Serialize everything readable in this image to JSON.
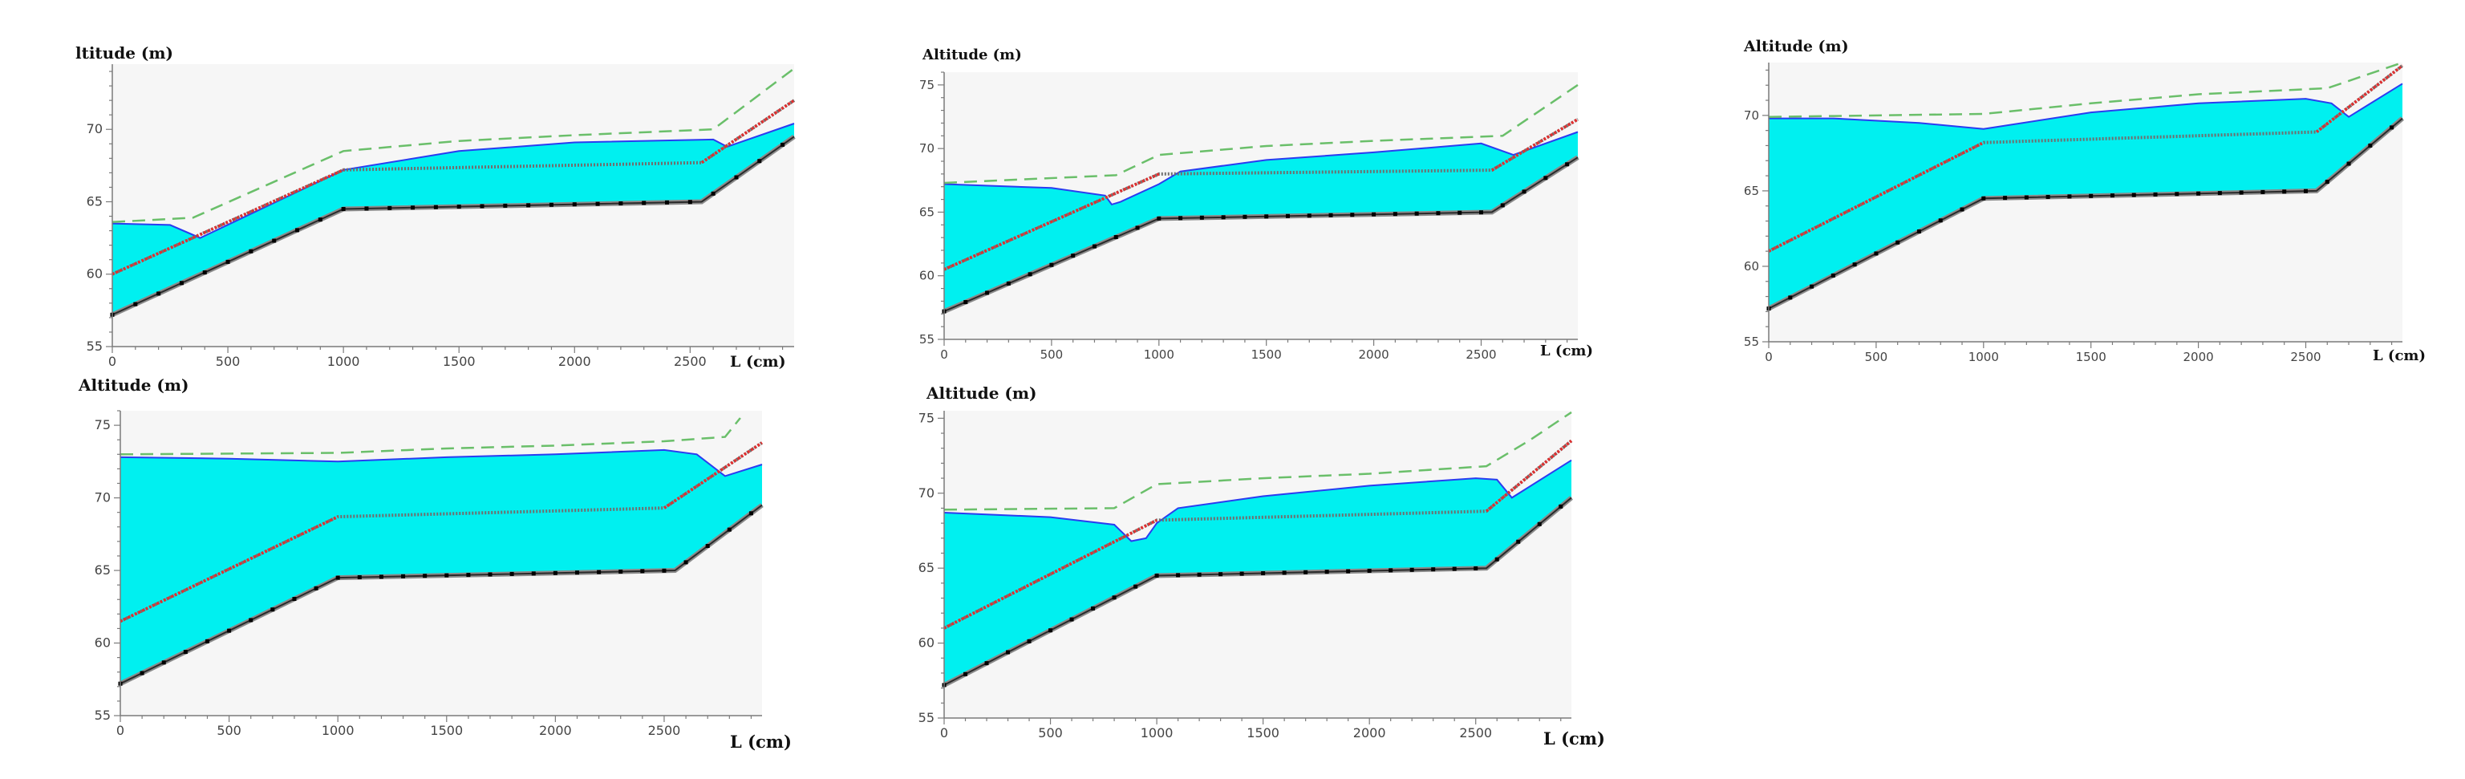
{
  "colors": {
    "water": "#00f0f0",
    "water_edge": "#2a3cf0",
    "dashed_line": "#6abf6a",
    "red_line": "#e03030",
    "chain_line": "#6f6f6f",
    "plot_bg": "#f6f6f6",
    "axis": "#7a7a7a"
  },
  "chart_data": [
    {
      "type": "area",
      "ylabel": "ltitude (m)",
      "xlabel": "L (cm)",
      "xlim": [
        0,
        2950
      ],
      "ylim": [
        55,
        74.5
      ],
      "xticks": [
        0,
        500,
        1000,
        1500,
        2000,
        2500
      ],
      "yticks": [
        55,
        60,
        65,
        70
      ],
      "bottom": [
        [
          0,
          57.2
        ],
        [
          1000,
          64.5
        ],
        [
          2550,
          65
        ],
        [
          2950,
          69.5
        ]
      ],
      "chain": [
        [
          0,
          60
        ],
        [
          1000,
          67.2
        ],
        [
          2550,
          67.7
        ],
        [
          2950,
          72
        ]
      ],
      "water": [
        [
          0,
          63.5
        ],
        [
          250,
          63.4
        ],
        [
          380,
          62.5
        ],
        [
          1000,
          67.2
        ],
        [
          1500,
          68.5
        ],
        [
          2000,
          69.1
        ],
        [
          2600,
          69.3
        ],
        [
          2660,
          68.8
        ],
        [
          2950,
          70.4
        ]
      ],
      "dashed": [
        [
          0,
          63.6
        ],
        [
          350,
          63.9
        ],
        [
          1000,
          68.5
        ],
        [
          1500,
          69.2
        ],
        [
          2000,
          69.6
        ],
        [
          2600,
          70
        ],
        [
          2950,
          74.2
        ]
      ]
    },
    {
      "type": "area",
      "ylabel": "Altitude (m)",
      "xlabel": "L (cm)",
      "xlim": [
        0,
        2950
      ],
      "ylim": [
        55,
        76
      ],
      "xticks": [
        0,
        500,
        1000,
        1500,
        2000,
        2500
      ],
      "yticks": [
        55,
        60,
        65,
        70,
        75
      ],
      "bottom": [
        [
          0,
          57.2
        ],
        [
          1000,
          64.5
        ],
        [
          2550,
          65
        ],
        [
          2950,
          69.3
        ]
      ],
      "chain": [
        [
          0,
          60.5
        ],
        [
          1000,
          68
        ],
        [
          2550,
          68.3
        ],
        [
          2950,
          72.3
        ]
      ],
      "water": [
        [
          0,
          67.2
        ],
        [
          500,
          66.9
        ],
        [
          750,
          66.3
        ],
        [
          780,
          65.6
        ],
        [
          820,
          65.8
        ],
        [
          1000,
          67.2
        ],
        [
          1100,
          68.2
        ],
        [
          1500,
          69.1
        ],
        [
          2000,
          69.7
        ],
        [
          2500,
          70.4
        ],
        [
          2650,
          69.5
        ],
        [
          2950,
          71.3
        ]
      ],
      "dashed": [
        [
          0,
          67.3
        ],
        [
          800,
          67.9
        ],
        [
          1000,
          69.5
        ],
        [
          1500,
          70.2
        ],
        [
          2000,
          70.6
        ],
        [
          2600,
          71
        ],
        [
          2950,
          75
        ]
      ]
    },
    {
      "type": "area",
      "ylabel": "Altitude (m)",
      "xlabel": "L (cm)",
      "xlim": [
        0,
        2950
      ],
      "ylim": [
        55,
        73.5
      ],
      "xticks": [
        0,
        500,
        1000,
        1500,
        2000,
        2500
      ],
      "yticks": [
        55,
        60,
        65,
        70
      ],
      "bottom": [
        [
          0,
          57.2
        ],
        [
          1000,
          64.5
        ],
        [
          2550,
          65
        ],
        [
          2950,
          69.8
        ]
      ],
      "chain": [
        [
          0,
          61
        ],
        [
          1000,
          68.2
        ],
        [
          2550,
          68.9
        ],
        [
          2950,
          73.3
        ]
      ],
      "water": [
        [
          0,
          69.8
        ],
        [
          300,
          69.8
        ],
        [
          700,
          69.5
        ],
        [
          1000,
          69.1
        ],
        [
          1500,
          70.2
        ],
        [
          2000,
          70.8
        ],
        [
          2500,
          71.1
        ],
        [
          2620,
          70.8
        ],
        [
          2700,
          69.9
        ],
        [
          2950,
          72.1
        ]
      ],
      "dashed": [
        [
          0,
          69.9
        ],
        [
          1000,
          70.1
        ],
        [
          1500,
          70.8
        ],
        [
          2000,
          71.4
        ],
        [
          2600,
          71.8
        ],
        [
          2950,
          73.5
        ]
      ]
    },
    {
      "type": "area",
      "ylabel": "Altitude (m)",
      "xlabel": "L (cm)",
      "xlim": [
        0,
        2950
      ],
      "ylim": [
        55,
        76
      ],
      "xticks": [
        0,
        500,
        1000,
        1500,
        2000,
        2500
      ],
      "yticks": [
        55,
        60,
        65,
        70,
        75
      ],
      "bottom": [
        [
          0,
          57.2
        ],
        [
          1000,
          64.5
        ],
        [
          2550,
          65
        ],
        [
          2950,
          69.5
        ]
      ],
      "chain": [
        [
          0,
          61.5
        ],
        [
          1000,
          68.7
        ],
        [
          2500,
          69.3
        ],
        [
          2950,
          73.8
        ]
      ],
      "water": [
        [
          0,
          72.8
        ],
        [
          500,
          72.7
        ],
        [
          1000,
          72.5
        ],
        [
          1500,
          72.8
        ],
        [
          2000,
          73
        ],
        [
          2500,
          73.3
        ],
        [
          2650,
          73
        ],
        [
          2780,
          71.5
        ],
        [
          2950,
          72.3
        ]
      ],
      "dashed": [
        [
          0,
          73
        ],
        [
          1000,
          73.1
        ],
        [
          1500,
          73.4
        ],
        [
          2000,
          73.6
        ],
        [
          2500,
          73.9
        ],
        [
          2780,
          74.2
        ],
        [
          2850,
          75.5
        ]
      ]
    },
    {
      "type": "area",
      "ylabel": "Altitude (m)",
      "xlabel": "L (cm)",
      "xlim": [
        0,
        2950
      ],
      "ylim": [
        55,
        75.5
      ],
      "xticks": [
        0,
        500,
        1000,
        1500,
        2000,
        2500
      ],
      "yticks": [
        55,
        60,
        65,
        70,
        75
      ],
      "bottom": [
        [
          0,
          57.2
        ],
        [
          1000,
          64.5
        ],
        [
          2550,
          65
        ],
        [
          2950,
          69.7
        ]
      ],
      "chain": [
        [
          0,
          61
        ],
        [
          1000,
          68.2
        ],
        [
          2550,
          68.8
        ],
        [
          2950,
          73.5
        ]
      ],
      "water": [
        [
          0,
          68.7
        ],
        [
          500,
          68.4
        ],
        [
          800,
          67.9
        ],
        [
          880,
          66.8
        ],
        [
          950,
          67
        ],
        [
          1000,
          68
        ],
        [
          1100,
          69
        ],
        [
          1500,
          69.8
        ],
        [
          2000,
          70.5
        ],
        [
          2500,
          71
        ],
        [
          2600,
          70.9
        ],
        [
          2670,
          69.7
        ],
        [
          2950,
          72.2
        ]
      ],
      "dashed": [
        [
          0,
          68.9
        ],
        [
          800,
          69
        ],
        [
          1000,
          70.6
        ],
        [
          1500,
          71
        ],
        [
          2000,
          71.3
        ],
        [
          2550,
          71.8
        ],
        [
          2750,
          73.5
        ],
        [
          2950,
          75.4
        ]
      ]
    }
  ]
}
